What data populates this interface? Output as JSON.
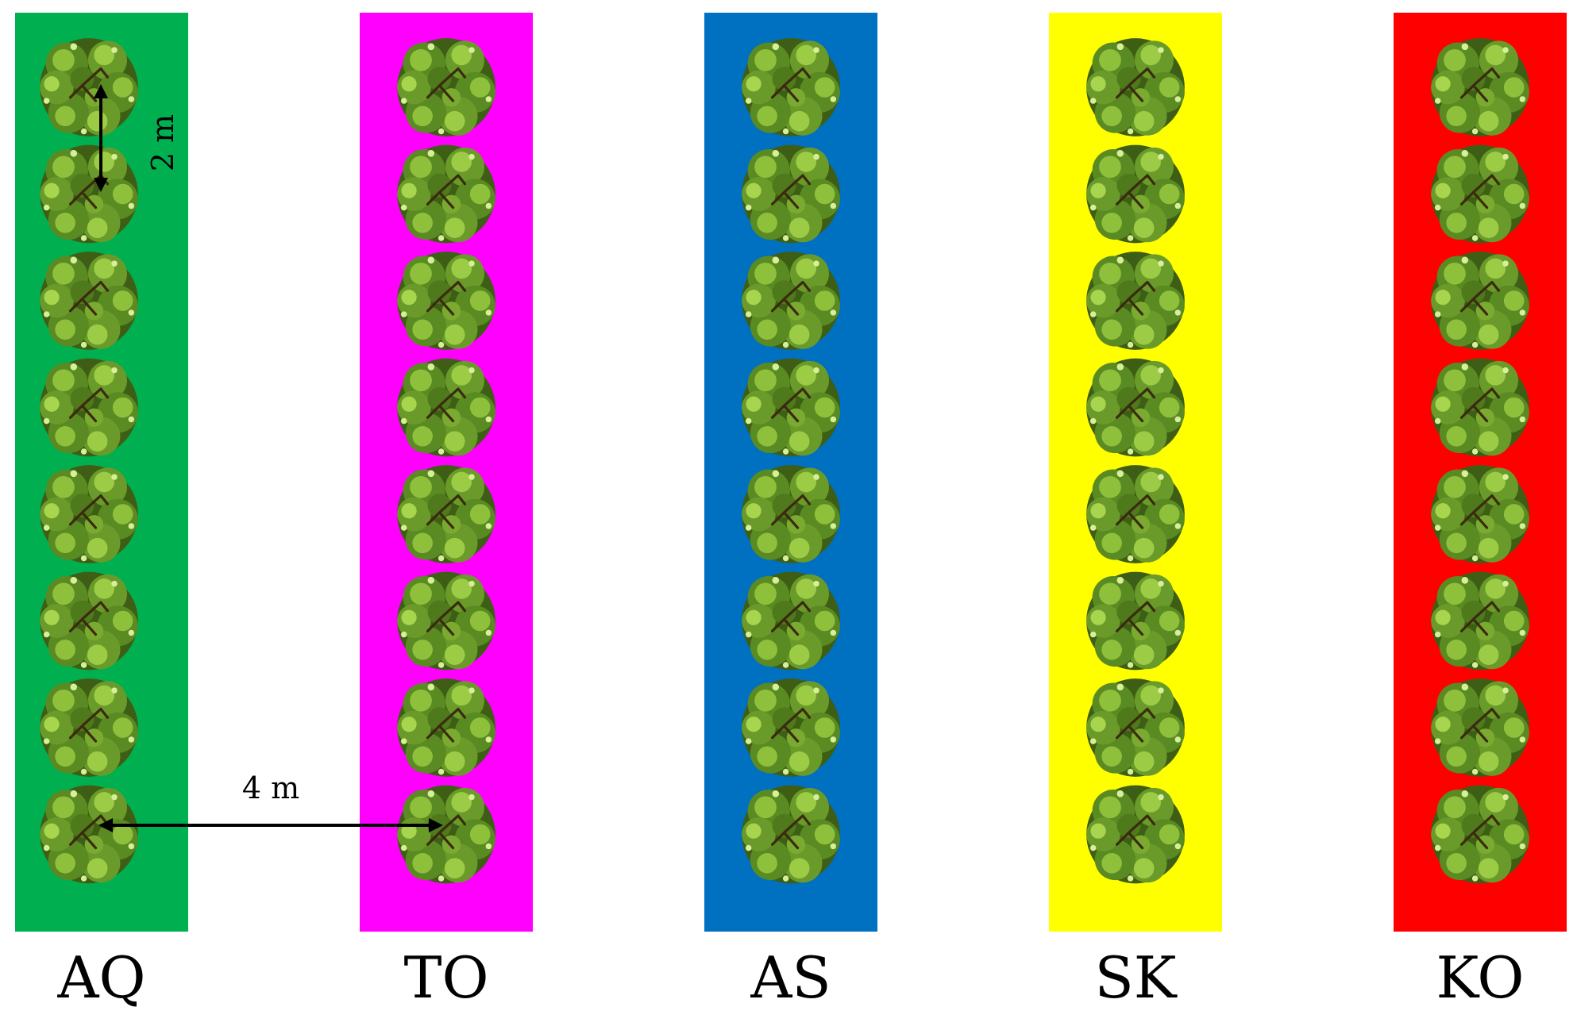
{
  "rows": [
    {
      "label": "AQ",
      "color": "#00b050"
    },
    {
      "label": "TO",
      "color": "#ff00ff"
    },
    {
      "label": "AS",
      "color": "#0070c0"
    },
    {
      "label": "SK",
      "color": "#ffff00"
    },
    {
      "label": "KO",
      "color": "#ff0000"
    }
  ],
  "trees_per_row": 8,
  "tree_icon": "tree-top-view-icon",
  "dimensions": {
    "in_row_spacing": "2 m",
    "between_row_spacing": "4 m"
  }
}
